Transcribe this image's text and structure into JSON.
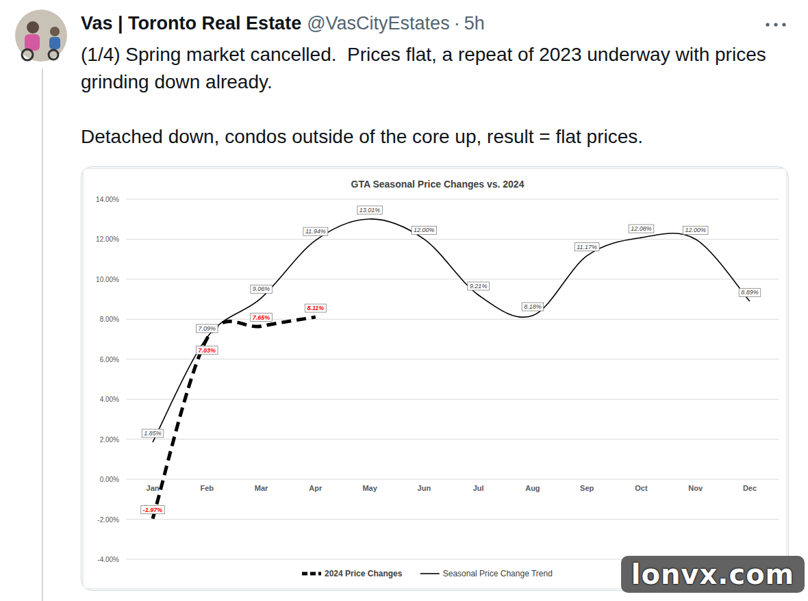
{
  "tweet": {
    "author": "Vas | Toronto Real Estate",
    "handle": "@VasCityEstates",
    "separator": "·",
    "time": "5h",
    "paragraphs": [
      "(1/4) Spring market cancelled.  Prices flat, a repeat of 2023 underway with prices grinding down already.",
      "Detached down, condos outside of the core up, result = flat prices."
    ],
    "watermark": "lonvx.com"
  },
  "chart_data": {
    "type": "line",
    "title": "GTA Seasonal Price Changes vs. 2024",
    "categories": [
      "Jan",
      "Feb",
      "Mar",
      "Apr",
      "May",
      "Jun",
      "Jul",
      "Aug",
      "Sep",
      "Oct",
      "Nov",
      "Dec"
    ],
    "series": [
      {
        "name": "2024 Price Changes",
        "color": "#000000",
        "line_style": "dashed",
        "values": [
          -1.97,
          7.03,
          7.65,
          8.11,
          null,
          null,
          null,
          null,
          null,
          null,
          null,
          null
        ],
        "value_labels": [
          "-1.97%",
          "7.03%",
          "7.65%",
          "8.11%",
          null,
          null,
          null,
          null,
          null,
          null,
          null,
          null
        ]
      },
      {
        "name": "Seasonal Price Change Trend",
        "color": "#000000",
        "line_style": "solid",
        "values": [
          1.85,
          7.09,
          9.06,
          11.94,
          13.01,
          12.0,
          9.21,
          8.18,
          11.17,
          12.08,
          12.0,
          8.89
        ],
        "value_labels": [
          "1.85%",
          "7.09%",
          "9.06%",
          "11.94%",
          "13.01%",
          "12.00%",
          "9.21%",
          "8.18%",
          "11.17%",
          "12.08%",
          "12.00%",
          "8.89%"
        ]
      }
    ],
    "ylim": [
      -4,
      14
    ],
    "yticks": [
      {
        "value": -4,
        "label": "-4.00%"
      },
      {
        "value": -2,
        "label": "-2.00%"
      },
      {
        "value": 0,
        "label": "0.00%"
      },
      {
        "value": 2,
        "label": "2.00%"
      },
      {
        "value": 4,
        "label": "4.00%"
      },
      {
        "value": 6,
        "label": "6.00%"
      },
      {
        "value": 8,
        "label": "8.00%"
      },
      {
        "value": 10,
        "label": "10.00%"
      },
      {
        "value": 12,
        "label": "12.00%"
      },
      {
        "value": 14,
        "label": "14.00%"
      }
    ],
    "grid": true,
    "data_labels": true,
    "legend": "bottom"
  }
}
